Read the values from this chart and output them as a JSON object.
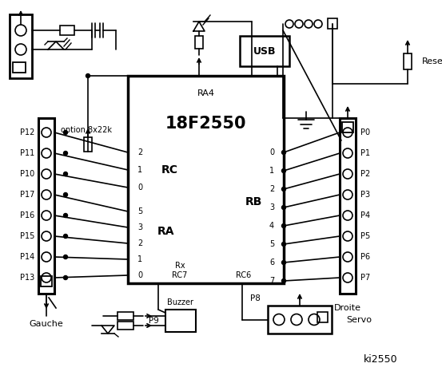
{
  "bg_color": "#ffffff",
  "fg_color": "#000000",
  "title": "ki2550",
  "chip_label": "18F2550",
  "chip_sublabel": "RA4",
  "port_RC_label": "RC",
  "port_RA_label": "RA",
  "port_RB_label": "RB",
  "left_connector_labels": [
    "P12",
    "P11",
    "P10",
    "P17",
    "P16",
    "P15",
    "P14",
    "P13"
  ],
  "right_connector_labels": [
    "P0",
    "P1",
    "P2",
    "P3",
    "P4",
    "P5",
    "P6",
    "P7"
  ],
  "rc_pins": [
    "2",
    "1",
    "0"
  ],
  "ra_pins": [
    "5",
    "3",
    "2",
    "1",
    "0"
  ],
  "rb_pins": [
    "0",
    "1",
    "2",
    "3",
    "4",
    "5",
    "6",
    "7"
  ],
  "gauche_label": "Gauche",
  "droite_label": "Droite",
  "usb_label": "USB",
  "reset_label": "Reset",
  "buzzer_label": "Buzzer",
  "servo_label": "Servo",
  "p8_label": "P8",
  "p9_label": "P9",
  "option_label": "option 8x22k",
  "rx_label": "Rx",
  "rc7_label": "RC7",
  "rc6_label": "RC6"
}
